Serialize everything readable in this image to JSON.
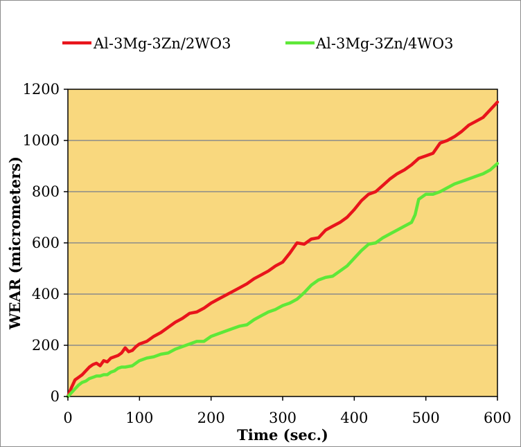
{
  "chart_data": {
    "type": "line",
    "xlabel": "Time (sec.)",
    "ylabel": "WEAR (micrometers)",
    "xlim": [
      0,
      600
    ],
    "ylim": [
      0,
      1200
    ],
    "xticks": [
      0,
      100,
      200,
      300,
      400,
      500,
      600
    ],
    "yticks": [
      0,
      200,
      400,
      600,
      800,
      1000,
      1200
    ],
    "grid": "horizontal",
    "legend_position": "top",
    "plot_background": "#f9d87e",
    "series": [
      {
        "name": "Al-3Mg-3Zn/2WO3",
        "color": "#e8141b",
        "x": [
          0,
          5,
          10,
          15,
          20,
          25,
          30,
          35,
          40,
          45,
          50,
          55,
          60,
          65,
          70,
          75,
          80,
          85,
          90,
          95,
          100,
          110,
          120,
          130,
          140,
          150,
          160,
          170,
          180,
          190,
          200,
          210,
          220,
          230,
          240,
          250,
          260,
          270,
          280,
          290,
          300,
          310,
          320,
          330,
          340,
          350,
          360,
          370,
          380,
          390,
          400,
          410,
          420,
          430,
          440,
          450,
          460,
          470,
          480,
          490,
          500,
          510,
          520,
          530,
          540,
          550,
          560,
          570,
          580,
          590,
          595,
          600
        ],
        "y": [
          0,
          35,
          65,
          75,
          85,
          100,
          115,
          125,
          130,
          120,
          140,
          135,
          150,
          155,
          160,
          170,
          190,
          175,
          180,
          195,
          205,
          215,
          235,
          250,
          270,
          290,
          305,
          325,
          330,
          345,
          365,
          380,
          395,
          410,
          425,
          440,
          460,
          475,
          490,
          510,
          525,
          560,
          600,
          595,
          615,
          620,
          650,
          665,
          680,
          700,
          730,
          765,
          790,
          800,
          825,
          850,
          870,
          885,
          905,
          930,
          940,
          950,
          990,
          1000,
          1015,
          1035,
          1060,
          1075,
          1090,
          1120,
          1135,
          1150
        ]
      },
      {
        "name": "Al-3Mg-3Zn/4WO3",
        "color": "#5ee838",
        "x": [
          0,
          5,
          10,
          15,
          20,
          25,
          30,
          35,
          40,
          45,
          50,
          55,
          60,
          65,
          70,
          75,
          80,
          90,
          100,
          110,
          120,
          130,
          140,
          150,
          160,
          170,
          180,
          190,
          200,
          210,
          220,
          230,
          240,
          250,
          260,
          270,
          280,
          290,
          300,
          310,
          320,
          330,
          340,
          350,
          360,
          370,
          380,
          390,
          400,
          410,
          420,
          430,
          440,
          450,
          460,
          470,
          480,
          485,
          490,
          500,
          510,
          520,
          530,
          540,
          550,
          560,
          570,
          580,
          590,
          600
        ],
        "y": [
          0,
          15,
          30,
          45,
          55,
          60,
          70,
          75,
          80,
          80,
          85,
          85,
          95,
          100,
          110,
          115,
          115,
          120,
          140,
          150,
          155,
          165,
          170,
          185,
          195,
          205,
          215,
          215,
          235,
          245,
          255,
          265,
          275,
          280,
          300,
          315,
          330,
          340,
          355,
          365,
          380,
          405,
          435,
          455,
          465,
          470,
          490,
          510,
          540,
          570,
          595,
          600,
          620,
          635,
          650,
          665,
          680,
          710,
          770,
          790,
          790,
          800,
          815,
          830,
          840,
          850,
          860,
          870,
          885,
          910
        ]
      }
    ]
  }
}
